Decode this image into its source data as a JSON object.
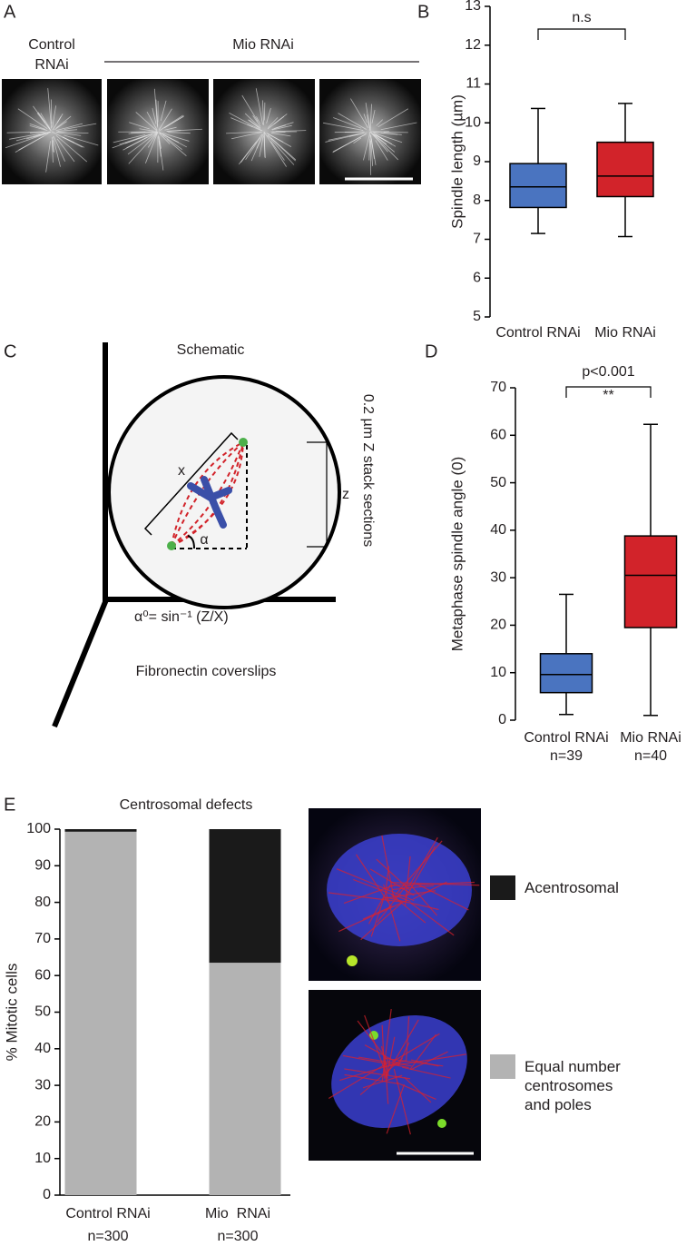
{
  "panel_letters": [
    "A",
    "B",
    "C",
    "D",
    "E"
  ],
  "panel_a": {
    "control_label": [
      "Control",
      "RNAi"
    ],
    "mio_label": "Mio RNAi"
  },
  "schematic": {
    "title": "Schematic",
    "x_label": "x",
    "angle_label": "α",
    "z_label": "z",
    "stack_label": "0.2 µm Z stack sections",
    "formula": "α⁰= sin⁻¹ (Z/X)",
    "surface_label": "Fibronectin coverslips"
  },
  "chart_data": [
    {
      "type": "box",
      "ylabel": "Spindle length (µm)",
      "categories": [
        "Control RNAi",
        "Mio RNAi"
      ],
      "colors": [
        "#4a74c0",
        "#d2232a"
      ],
      "low": [
        7.15,
        7.07
      ],
      "q1": [
        7.82,
        8.1
      ],
      "median": [
        8.35,
        8.63
      ],
      "q3": [
        8.95,
        9.5
      ],
      "high": [
        10.37,
        10.5
      ],
      "ylim": [
        5,
        13
      ],
      "yticks": [
        5,
        6,
        7,
        8,
        9,
        10,
        11,
        12,
        13
      ],
      "annotations": [
        "n.s"
      ]
    },
    {
      "type": "box",
      "ylabel": "Metaphase spindle angle (0)",
      "categories": [
        "Control RNAi",
        "Mio RNAi"
      ],
      "n_labels": [
        "n=39",
        "n=40"
      ],
      "colors": [
        "#4a74c0",
        "#d2232a"
      ],
      "low": [
        1.2,
        1.0
      ],
      "q1": [
        5.8,
        19.5
      ],
      "median": [
        9.6,
        30.5
      ],
      "q3": [
        14,
        38.8
      ],
      "high": [
        26.5,
        62.3
      ],
      "ylim": [
        0,
        70
      ],
      "yticks": [
        0,
        10,
        20,
        30,
        40,
        50,
        60,
        70
      ],
      "annotations": [
        "p<0.001",
        "**"
      ]
    },
    {
      "type": "stacked_bar",
      "title": "Centrosomal defects",
      "ylabel": "% Mitotic cells",
      "categories": [
        "Control RNAi",
        "Mio  RNAi"
      ],
      "n_labels": [
        "n=300",
        "n=300"
      ],
      "series": [
        {
          "name": "Equal number centrosomes and poles",
          "color": "#b3b3b3",
          "values": [
            99.3,
            63.5
          ]
        },
        {
          "name": "Acentrosomal",
          "color": "#1a1a1a",
          "values": [
            0.7,
            36.5
          ]
        }
      ],
      "ylim": [
        0,
        100
      ],
      "yticks": [
        0,
        10,
        20,
        30,
        40,
        50,
        60,
        70,
        80,
        90,
        100
      ]
    }
  ]
}
